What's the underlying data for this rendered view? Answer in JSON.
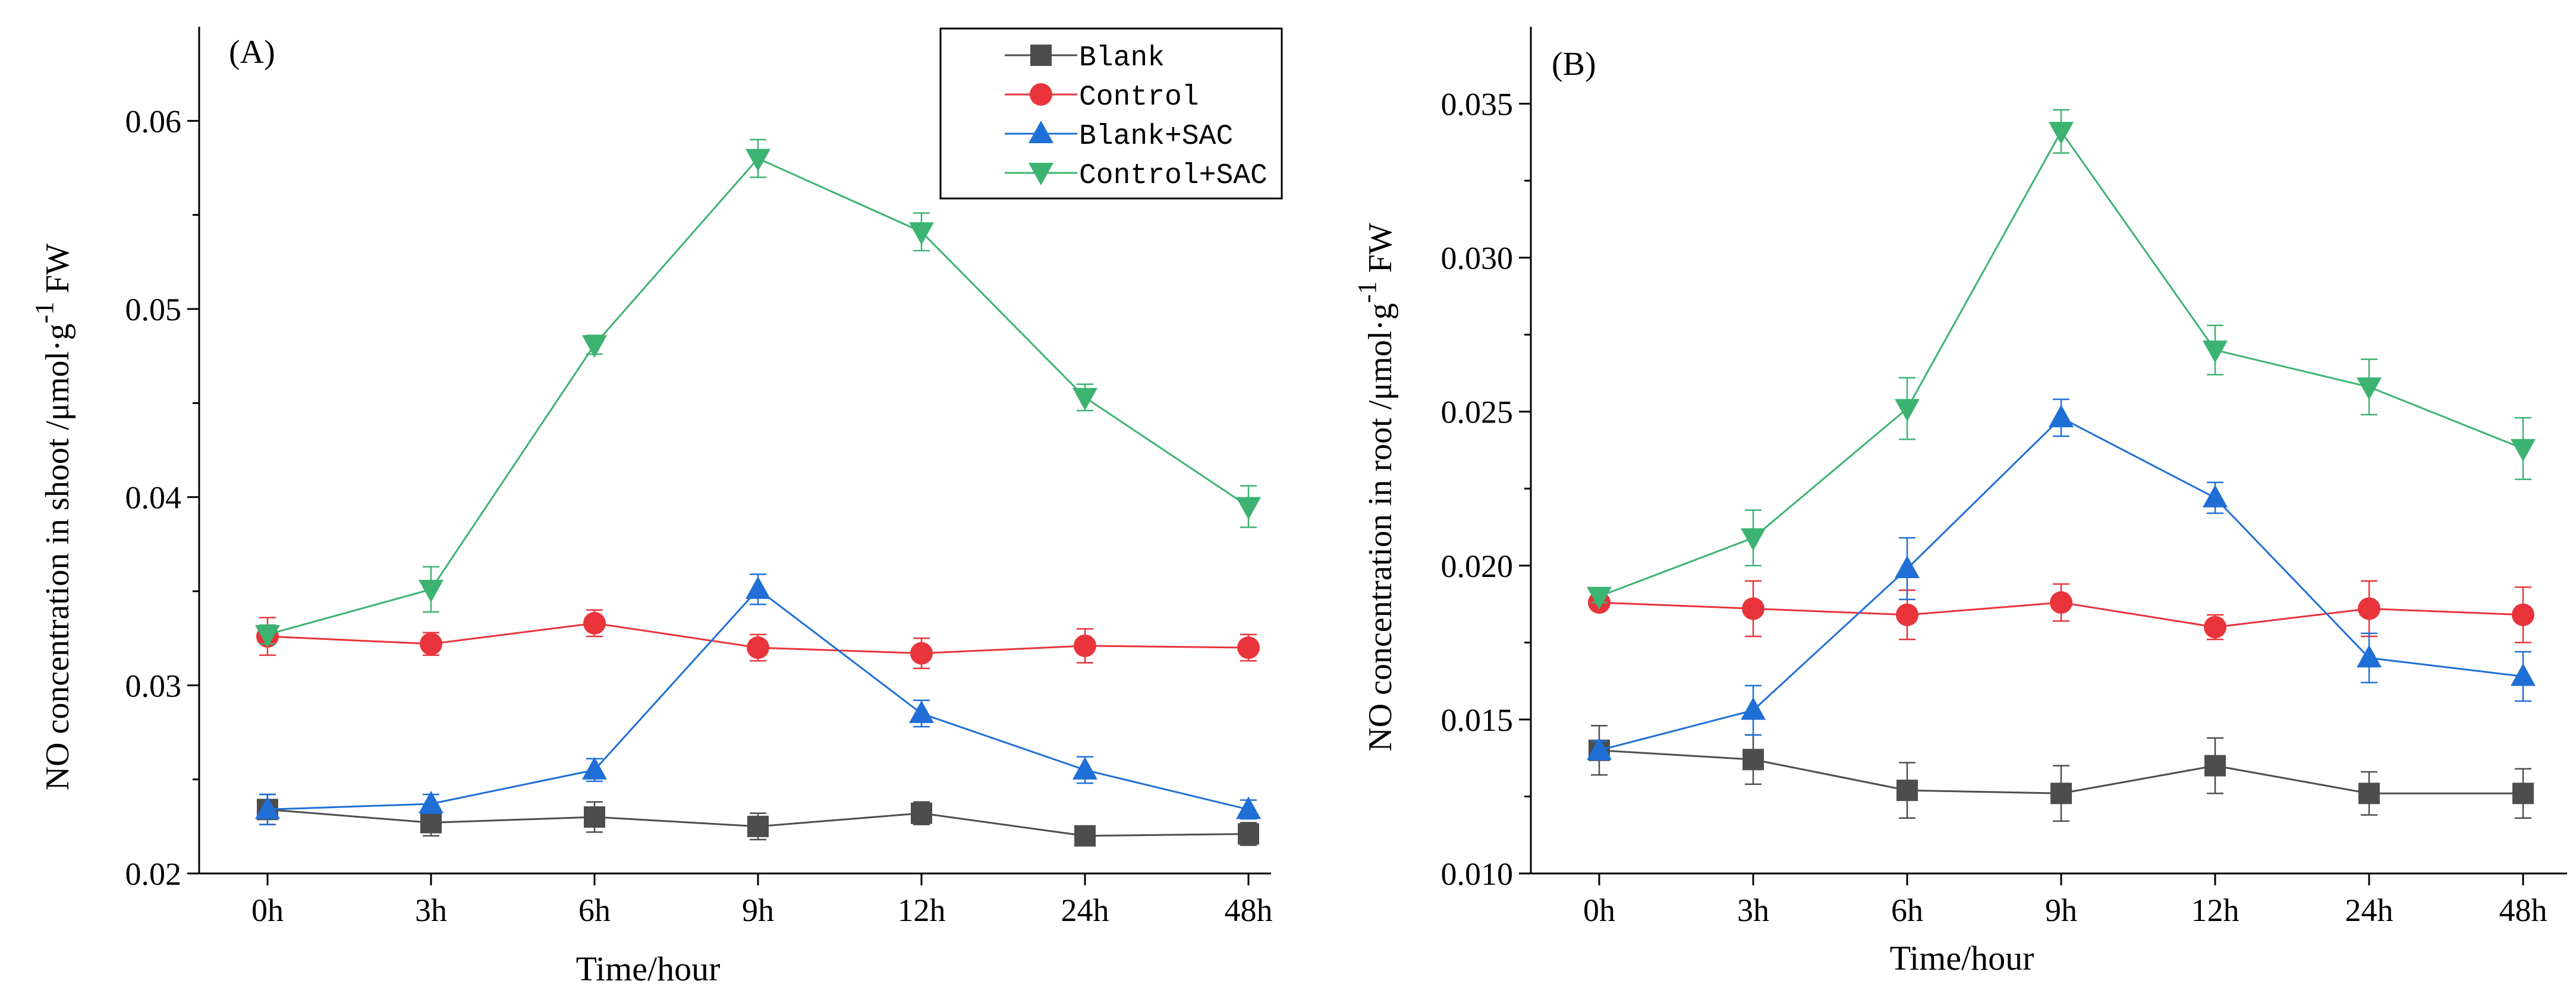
{
  "chart_data": [
    {
      "panel_label": "(A)",
      "type": "line",
      "categories": [
        "0h",
        "3h",
        "6h",
        "9h",
        "12h",
        "24h",
        "48h"
      ],
      "xlabel": "Time/hour",
      "ylabel_main": "NO concentration in shoot /μmol·g",
      "ylabel_sup": "-1",
      "ylabel_tail": "FW",
      "ylim": [
        0.02,
        0.065
      ],
      "yticks": [
        {
          "value": 0.02,
          "label": "0.02"
        },
        {
          "value": 0.03,
          "label": "0.03"
        },
        {
          "value": 0.04,
          "label": "0.04"
        },
        {
          "value": 0.05,
          "label": "0.05"
        },
        {
          "value": 0.06,
          "label": "0.06"
        }
      ],
      "legend": {
        "position": "top-right"
      },
      "series": [
        {
          "name": "Blank",
          "color": "#4d4d4d",
          "marker": "square",
          "values": [
            0.0234,
            0.0227,
            0.023,
            0.0225,
            0.0232,
            0.022,
            0.0221
          ],
          "errors": [
            0.0008,
            0.0007,
            0.0008,
            0.0007,
            0.0006,
            0.0005,
            0.0006
          ]
        },
        {
          "name": "Control",
          "color": "#e8343a",
          "marker": "circle",
          "values": [
            0.0326,
            0.0322,
            0.0333,
            0.032,
            0.0317,
            0.0321,
            0.032
          ],
          "errors": [
            0.001,
            0.0006,
            0.0007,
            0.0007,
            0.0008,
            0.0009,
            0.0007
          ]
        },
        {
          "name": "Blank+SAC",
          "color": "#1f6fd6",
          "marker": "triangle-up",
          "values": [
            0.0234,
            0.0237,
            0.0255,
            0.0351,
            0.0285,
            0.0255,
            0.0234
          ],
          "errors": [
            0.0008,
            0.0005,
            0.0006,
            0.0008,
            0.0007,
            0.0007,
            0.0005
          ]
        },
        {
          "name": "Control+SAC",
          "color": "#3cb371",
          "marker": "triangle-down",
          "values": [
            0.0327,
            0.0351,
            0.0481,
            0.058,
            0.0541,
            0.0453,
            0.0395
          ],
          "errors": [
            0.0005,
            0.0012,
            0.0005,
            0.001,
            0.001,
            0.0007,
            0.0011
          ]
        }
      ]
    },
    {
      "panel_label": "(B)",
      "type": "line",
      "categories": [
        "0h",
        "3h",
        "6h",
        "9h",
        "12h",
        "24h",
        "48h"
      ],
      "xlabel": "Time/hour",
      "ylabel_main": "NO concentration in root /μmol·g",
      "ylabel_sup": "-1",
      "ylabel_tail": "FW",
      "ylim": [
        0.01,
        0.0375
      ],
      "yticks": [
        {
          "value": 0.01,
          "label": "0.010"
        },
        {
          "value": 0.015,
          "label": "0.015"
        },
        {
          "value": 0.02,
          "label": "0.020"
        },
        {
          "value": 0.025,
          "label": "0.025"
        },
        {
          "value": 0.03,
          "label": "0.030"
        },
        {
          "value": 0.035,
          "label": "0.035"
        }
      ],
      "series": [
        {
          "name": "Blank",
          "color": "#4d4d4d",
          "marker": "square",
          "values": [
            0.014,
            0.0137,
            0.0127,
            0.0126,
            0.0135,
            0.0126,
            0.0126
          ],
          "errors": [
            0.0008,
            0.0008,
            0.0009,
            0.0009,
            0.0009,
            0.0007,
            0.0008
          ]
        },
        {
          "name": "Control",
          "color": "#e8343a",
          "marker": "circle",
          "values": [
            0.0188,
            0.0186,
            0.0184,
            0.0188,
            0.018,
            0.0186,
            0.0184
          ],
          "errors": [
            0.0002,
            0.0009,
            0.0008,
            0.0006,
            0.0004,
            0.0009,
            0.0009
          ]
        },
        {
          "name": "Blank+SAC",
          "color": "#1f6fd6",
          "marker": "triangle-up",
          "values": [
            0.014,
            0.0153,
            0.0199,
            0.0248,
            0.0222,
            0.017,
            0.0164
          ],
          "errors": [
            0.0003,
            0.0008,
            0.001,
            0.0006,
            0.0005,
            0.0008,
            0.0008
          ]
        },
        {
          "name": "Control+SAC",
          "color": "#3cb371",
          "marker": "triangle-down",
          "values": [
            0.019,
            0.0209,
            0.0251,
            0.0341,
            0.027,
            0.0258,
            0.0238
          ],
          "errors": [
            0.0002,
            0.0009,
            0.001,
            0.0007,
            0.0008,
            0.0009,
            0.001
          ]
        }
      ]
    }
  ]
}
